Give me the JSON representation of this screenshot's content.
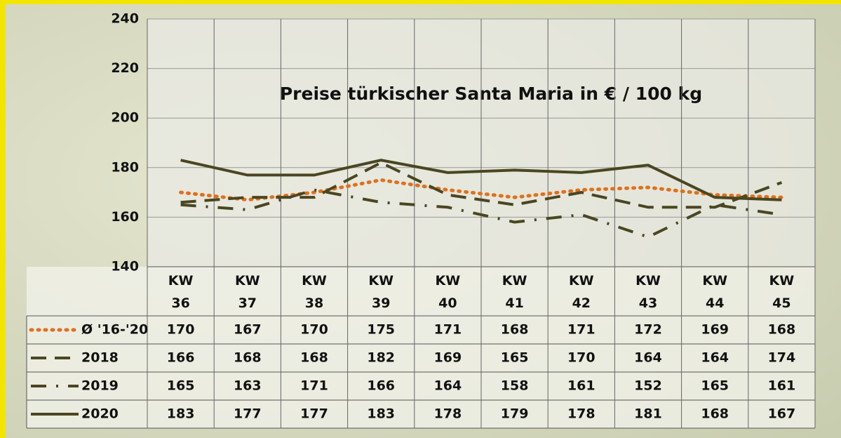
{
  "chart_data": {
    "type": "line",
    "title": "Preise türkischer Santa Maria in € / 100 kg",
    "categories": [
      "KW 36",
      "KW 37",
      "KW 38",
      "KW 39",
      "KW 40",
      "KW 41",
      "KW 42",
      "KW 43",
      "KW 44",
      "KW 45"
    ],
    "series": [
      {
        "name": "Ø '16-'20",
        "color": "#e0701c",
        "dash": "dot",
        "values": [
          170,
          167,
          170,
          175,
          171,
          168,
          171,
          172,
          169,
          168
        ]
      },
      {
        "name": "2018",
        "color": "#4a4620",
        "dash": "dash",
        "values": [
          166,
          168,
          168,
          182,
          169,
          165,
          170,
          164,
          164,
          174
        ]
      },
      {
        "name": "2019",
        "color": "#4a4620",
        "dash": "dashdot",
        "values": [
          165,
          163,
          171,
          166,
          164,
          158,
          161,
          152,
          165,
          161
        ]
      },
      {
        "name": "2020",
        "color": "#4a4620",
        "dash": "solid",
        "values": [
          183,
          177,
          177,
          183,
          178,
          179,
          178,
          181,
          168,
          167
        ]
      }
    ],
    "ylim": [
      140,
      240
    ],
    "yticks": [
      140,
      160,
      180,
      200,
      220,
      240
    ],
    "grid": true
  }
}
